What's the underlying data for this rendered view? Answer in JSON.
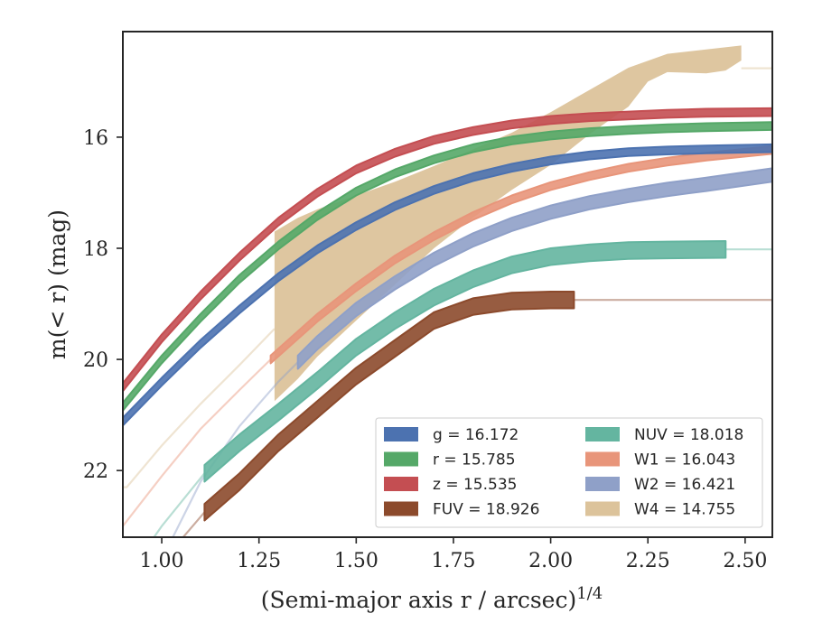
{
  "chart_data": {
    "type": "line",
    "xlabel": "(Semi-major axis r / arcsec)",
    "xlabel_sup": "1/4",
    "ylabel": "m(< r) (mag)",
    "xlim": [
      0.9,
      2.57
    ],
    "ylim": [
      23.2,
      14.1
    ],
    "y_inverted": true,
    "grid": false,
    "legend_position": "lower right",
    "xticks": [
      1.0,
      1.25,
      1.5,
      1.75,
      2.0,
      2.25,
      2.5
    ],
    "xtick_labels": [
      "1.00",
      "1.25",
      "1.50",
      "1.75",
      "2.00",
      "2.25",
      "2.50"
    ],
    "yticks": [
      16,
      18,
      20,
      22
    ],
    "ytick_labels": [
      "16",
      "18",
      "20",
      "22"
    ],
    "series": [
      {
        "name": "g",
        "legend": "g = 16.172",
        "color": "#4c72b0",
        "band_width": 0.07,
        "valid_x": [
          0.9,
          2.57
        ],
        "faded_x": [],
        "points": [
          [
            0.9,
            21.12
          ],
          [
            1.0,
            20.4
          ],
          [
            1.1,
            19.72
          ],
          [
            1.2,
            19.1
          ],
          [
            1.3,
            18.52
          ],
          [
            1.4,
            18.02
          ],
          [
            1.5,
            17.6
          ],
          [
            1.6,
            17.24
          ],
          [
            1.7,
            16.95
          ],
          [
            1.8,
            16.72
          ],
          [
            1.9,
            16.55
          ],
          [
            2.0,
            16.42
          ],
          [
            2.1,
            16.33
          ],
          [
            2.2,
            16.27
          ],
          [
            2.3,
            16.24
          ],
          [
            2.4,
            16.22
          ],
          [
            2.57,
            16.2
          ]
        ]
      },
      {
        "name": "r",
        "legend": "r = 15.785",
        "color": "#55a868",
        "band_width": 0.07,
        "valid_x": [
          0.9,
          2.57
        ],
        "faded_x": [],
        "points": [
          [
            0.9,
            20.85
          ],
          [
            1.0,
            20.0
          ],
          [
            1.1,
            19.25
          ],
          [
            1.2,
            18.55
          ],
          [
            1.3,
            17.95
          ],
          [
            1.4,
            17.42
          ],
          [
            1.5,
            16.98
          ],
          [
            1.6,
            16.65
          ],
          [
            1.7,
            16.4
          ],
          [
            1.8,
            16.2
          ],
          [
            1.9,
            16.06
          ],
          [
            2.0,
            15.97
          ],
          [
            2.1,
            15.91
          ],
          [
            2.2,
            15.87
          ],
          [
            2.3,
            15.84
          ],
          [
            2.4,
            15.82
          ],
          [
            2.57,
            15.8
          ]
        ]
      },
      {
        "name": "z",
        "legend": "z = 15.535",
        "color": "#c44e52",
        "band_width": 0.07,
        "valid_x": [
          0.9,
          2.57
        ],
        "faded_x": [],
        "points": [
          [
            0.9,
            20.5
          ],
          [
            1.0,
            19.62
          ],
          [
            1.1,
            18.85
          ],
          [
            1.2,
            18.15
          ],
          [
            1.3,
            17.52
          ],
          [
            1.4,
            17.0
          ],
          [
            1.5,
            16.58
          ],
          [
            1.6,
            16.28
          ],
          [
            1.7,
            16.05
          ],
          [
            1.8,
            15.89
          ],
          [
            1.9,
            15.77
          ],
          [
            2.0,
            15.69
          ],
          [
            2.1,
            15.64
          ],
          [
            2.2,
            15.61
          ],
          [
            2.3,
            15.58
          ],
          [
            2.4,
            15.56
          ],
          [
            2.57,
            15.55
          ]
        ]
      },
      {
        "name": "FUV",
        "legend": "FUV = 18.926",
        "color": "#8c4a2c",
        "band_width": 0.15,
        "valid_x": [
          1.11,
          2.06
        ],
        "faded_x": [
          [
            0.9,
            1.11
          ],
          [
            2.06,
            2.57
          ]
        ],
        "points": [
          [
            0.9,
            24.5
          ],
          [
            1.0,
            23.65
          ],
          [
            1.11,
            22.75
          ],
          [
            1.2,
            22.2
          ],
          [
            1.3,
            21.5
          ],
          [
            1.4,
            20.9
          ],
          [
            1.5,
            20.3
          ],
          [
            1.6,
            19.8
          ],
          [
            1.7,
            19.3
          ],
          [
            1.8,
            19.05
          ],
          [
            1.9,
            18.95
          ],
          [
            2.0,
            18.93
          ],
          [
            2.06,
            18.93
          ],
          [
            2.57,
            18.93
          ]
        ]
      },
      {
        "name": "NUV",
        "legend": "NUV = 18.018",
        "color": "#64b5a0",
        "band_width": 0.15,
        "valid_x": [
          1.11,
          2.45
        ],
        "faded_x": [
          [
            0.9,
            1.11
          ],
          [
            2.45,
            2.57
          ]
        ],
        "points": [
          [
            0.9,
            24.0
          ],
          [
            1.0,
            23.0
          ],
          [
            1.11,
            22.05
          ],
          [
            1.2,
            21.5
          ],
          [
            1.3,
            20.95
          ],
          [
            1.4,
            20.38
          ],
          [
            1.5,
            19.78
          ],
          [
            1.6,
            19.3
          ],
          [
            1.7,
            18.88
          ],
          [
            1.8,
            18.55
          ],
          [
            1.9,
            18.3
          ],
          [
            2.0,
            18.15
          ],
          [
            2.1,
            18.08
          ],
          [
            2.2,
            18.04
          ],
          [
            2.3,
            18.03
          ],
          [
            2.45,
            18.02
          ],
          [
            2.57,
            18.02
          ]
        ]
      },
      {
        "name": "W1",
        "legend": "W1 = 16.043",
        "color": "#e8957a",
        "band_width": 0.07,
        "valid_x": [
          1.28,
          2.57
        ],
        "faded_x": [
          [
            0.9,
            1.28
          ]
        ],
        "points": [
          [
            0.9,
            23.0
          ],
          [
            1.0,
            22.1
          ],
          [
            1.1,
            21.25
          ],
          [
            1.2,
            20.55
          ],
          [
            1.28,
            20.0
          ],
          [
            1.4,
            19.25
          ],
          [
            1.5,
            18.7
          ],
          [
            1.6,
            18.2
          ],
          [
            1.7,
            17.78
          ],
          [
            1.8,
            17.42
          ],
          [
            1.9,
            17.12
          ],
          [
            2.0,
            16.88
          ],
          [
            2.1,
            16.7
          ],
          [
            2.2,
            16.55
          ],
          [
            2.3,
            16.44
          ],
          [
            2.4,
            16.35
          ],
          [
            2.57,
            16.23
          ]
        ]
      },
      {
        "name": "W2",
        "legend": "W2 = 16.421",
        "color": "#8fa0c8",
        "band_width": 0.12,
        "valid_x": [
          1.35,
          2.57
        ],
        "faded_x": [
          [
            0.9,
            1.35
          ]
        ],
        "points": [
          [
            0.9,
            25.0
          ],
          [
            1.1,
            22.2
          ],
          [
            1.2,
            21.2
          ],
          [
            1.3,
            20.4
          ],
          [
            1.35,
            20.05
          ],
          [
            1.4,
            19.7
          ],
          [
            1.5,
            19.1
          ],
          [
            1.6,
            18.62
          ],
          [
            1.7,
            18.2
          ],
          [
            1.8,
            17.85
          ],
          [
            1.9,
            17.57
          ],
          [
            2.0,
            17.35
          ],
          [
            2.1,
            17.18
          ],
          [
            2.2,
            17.05
          ],
          [
            2.3,
            16.94
          ],
          [
            2.4,
            16.85
          ],
          [
            2.57,
            16.68
          ]
        ]
      },
      {
        "name": "W4",
        "legend": "W4 = 14.755",
        "color": "#dcc39b",
        "band_width": 0.0,
        "valid_x": [
          1.29,
          2.49
        ],
        "faded_x": [
          [
            0.9,
            1.29
          ],
          [
            2.49,
            2.57
          ]
        ],
        "points": [
          [
            0.91,
            22.3
          ],
          [
            1.0,
            21.55
          ],
          [
            1.1,
            20.8
          ],
          [
            1.2,
            20.1
          ],
          [
            1.29,
            19.45
          ],
          [
            2.49,
            14.76
          ],
          [
            2.57,
            14.76
          ]
        ],
        "band_upper": [
          [
            1.29,
            17.7
          ],
          [
            1.35,
            17.45
          ],
          [
            1.4,
            17.3
          ],
          [
            1.5,
            17.05
          ],
          [
            1.6,
            16.8
          ],
          [
            1.7,
            16.52
          ],
          [
            1.8,
            16.22
          ],
          [
            1.9,
            15.92
          ],
          [
            2.0,
            15.55
          ],
          [
            2.1,
            15.15
          ],
          [
            2.2,
            14.75
          ],
          [
            2.3,
            14.5
          ],
          [
            2.4,
            14.42
          ],
          [
            2.49,
            14.35
          ]
        ],
        "band_lower": [
          [
            1.29,
            20.75
          ],
          [
            1.35,
            20.35
          ],
          [
            1.4,
            19.95
          ],
          [
            1.5,
            19.3
          ],
          [
            1.6,
            18.65
          ],
          [
            1.7,
            18.0
          ],
          [
            1.8,
            17.45
          ],
          [
            1.9,
            16.95
          ],
          [
            2.0,
            16.5
          ],
          [
            2.1,
            15.95
          ],
          [
            2.2,
            15.45
          ],
          [
            2.25,
            15.0
          ],
          [
            2.3,
            14.83
          ],
          [
            2.4,
            14.85
          ],
          [
            2.45,
            14.8
          ],
          [
            2.49,
            14.62
          ]
        ]
      }
    ]
  }
}
